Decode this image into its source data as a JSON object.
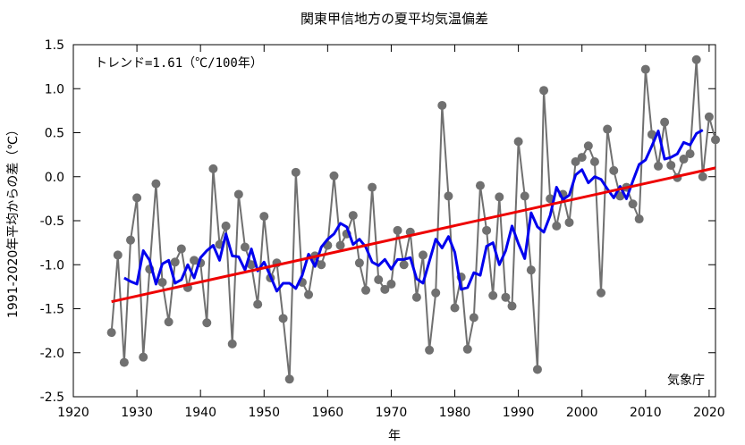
{
  "chart_data": {
    "type": "line",
    "title": "関東甲信地方の夏平均気温偏差",
    "xlabel": "年",
    "ylabel": "1991-2020年平均からの差（℃）",
    "annotation": "トレンド=1.61（℃/100年）",
    "credit": "気象庁",
    "xlim": [
      1920,
      2021
    ],
    "ylim": [
      -2.5,
      1.5
    ],
    "x_ticks": [
      1920,
      1930,
      1940,
      1950,
      1960,
      1970,
      1980,
      1990,
      2000,
      2010,
      2020
    ],
    "y_ticks": [
      1.5,
      1.0,
      0.5,
      0.0,
      -0.5,
      -1.0,
      -1.5,
      -2.0,
      -2.5
    ],
    "grid": false,
    "colors": {
      "annual": "#707070",
      "moving_average": "#0000ee",
      "trend": "#ee0000"
    },
    "series": [
      {
        "name": "annual",
        "x": [
          1926,
          1927,
          1928,
          1929,
          1930,
          1931,
          1932,
          1933,
          1934,
          1935,
          1936,
          1937,
          1938,
          1939,
          1940,
          1941,
          1942,
          1943,
          1944,
          1945,
          1946,
          1947,
          1948,
          1949,
          1950,
          1951,
          1952,
          1953,
          1954,
          1955,
          1956,
          1957,
          1958,
          1959,
          1960,
          1961,
          1962,
          1963,
          1964,
          1965,
          1966,
          1967,
          1968,
          1969,
          1970,
          1971,
          1972,
          1973,
          1974,
          1975,
          1976,
          1977,
          1978,
          1979,
          1980,
          1981,
          1982,
          1983,
          1984,
          1985,
          1986,
          1987,
          1988,
          1989,
          1990,
          1991,
          1992,
          1993,
          1994,
          1995,
          1996,
          1997,
          1998,
          1999,
          2000,
          2001,
          2002,
          2003,
          2004,
          2005,
          2006,
          2007,
          2008,
          2009,
          2010,
          2011,
          2012,
          2013,
          2014,
          2015,
          2016,
          2017,
          2018,
          2019,
          2020,
          2021
        ],
        "values": [
          -1.77,
          -0.89,
          -2.11,
          -0.72,
          -0.24,
          -2.05,
          -1.05,
          -0.08,
          -1.2,
          -1.65,
          -0.97,
          -0.82,
          -1.26,
          -0.95,
          -0.98,
          -1.66,
          0.09,
          -0.77,
          -0.56,
          -1.9,
          -0.2,
          -0.8,
          -1.0,
          -1.45,
          -0.45,
          -1.15,
          -0.98,
          -1.61,
          -2.3,
          0.05,
          -1.2,
          -1.34,
          -0.9,
          -1.0,
          -0.78,
          0.01,
          -0.78,
          -0.65,
          -0.44,
          -0.98,
          -1.29,
          -0.12,
          -1.17,
          -1.28,
          -1.22,
          -0.61,
          -1.0,
          -0.63,
          -1.37,
          -0.89,
          -1.97,
          -1.32,
          0.81,
          -0.22,
          -1.49,
          -1.14,
          -1.96,
          -1.6,
          -0.1,
          -0.61,
          -1.35,
          -0.23,
          -1.37,
          -1.47,
          0.4,
          -0.22,
          -1.06,
          -2.19,
          0.98,
          -0.25,
          -0.56,
          -0.2,
          -0.52,
          0.17,
          0.22,
          0.35,
          0.17,
          -1.32,
          0.54,
          0.07,
          -0.22,
          -0.12,
          -0.31,
          -0.48,
          1.22,
          0.48,
          0.12,
          0.62,
          0.13,
          -0.01,
          0.2,
          0.26,
          1.33,
          0.0,
          0.68,
          0.42
        ]
      },
      {
        "name": "moving_average",
        "x": [
          1928,
          1929,
          1930,
          1931,
          1932,
          1933,
          1934,
          1935,
          1936,
          1937,
          1938,
          1939,
          1940,
          1941,
          1942,
          1943,
          1944,
          1945,
          1946,
          1947,
          1948,
          1949,
          1950,
          1951,
          1952,
          1953,
          1954,
          1955,
          1956,
          1957,
          1958,
          1959,
          1960,
          1961,
          1962,
          1963,
          1964,
          1965,
          1966,
          1967,
          1968,
          1969,
          1970,
          1971,
          1972,
          1973,
          1974,
          1975,
          1976,
          1977,
          1978,
          1979,
          1980,
          1981,
          1982,
          1983,
          1984,
          1985,
          1986,
          1987,
          1988,
          1989,
          1990,
          1991,
          1992,
          1993,
          1994,
          1995,
          1996,
          1997,
          1998,
          1999,
          2000,
          2001,
          2002,
          2003,
          2004,
          2005,
          2006,
          2007,
          2008,
          2009,
          2010,
          2011,
          2012,
          2013,
          2014,
          2015,
          2016,
          2017,
          2018,
          2019
        ],
        "values": [
          -1.15,
          -1.19,
          -1.22,
          -0.84,
          -0.95,
          -1.22,
          -0.99,
          -0.95,
          -1.21,
          -1.17,
          -1.0,
          -1.15,
          -0.92,
          -0.84,
          -0.78,
          -0.95,
          -0.65,
          -0.9,
          -0.91,
          -1.06,
          -0.82,
          -1.07,
          -0.97,
          -1.13,
          -1.3,
          -1.21,
          -1.21,
          -1.27,
          -1.12,
          -0.88,
          -1.02,
          -0.8,
          -0.71,
          -0.65,
          -0.53,
          -0.57,
          -0.77,
          -0.71,
          -0.8,
          -0.97,
          -1.01,
          -0.94,
          -1.05,
          -0.94,
          -0.94,
          -0.92,
          -1.16,
          -1.21,
          -0.96,
          -0.71,
          -0.81,
          -0.68,
          -0.86,
          -1.28,
          -1.26,
          -1.09,
          -1.12,
          -0.79,
          -0.75,
          -1.0,
          -0.84,
          -0.56,
          -0.76,
          -0.93,
          -0.41,
          -0.57,
          -0.63,
          -0.44,
          -0.12,
          -0.26,
          -0.21,
          0.02,
          0.08,
          -0.07,
          0.0,
          -0.03,
          -0.14,
          -0.24,
          -0.11,
          -0.25,
          -0.05,
          0.14,
          0.19,
          0.35,
          0.52,
          0.2,
          0.22,
          0.26,
          0.39,
          0.36,
          0.49,
          0.53
        ]
      },
      {
        "name": "trend",
        "x": [
          1926,
          2021
        ],
        "values": [
          -1.42,
          0.1
        ]
      }
    ]
  }
}
